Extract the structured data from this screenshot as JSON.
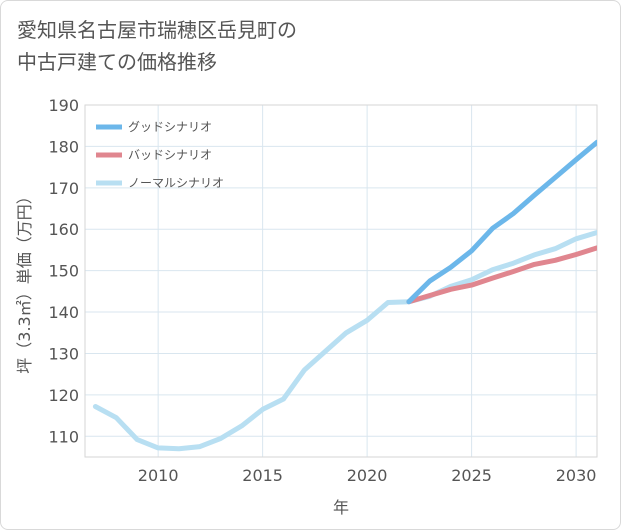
{
  "chart_data": {
    "type": "line",
    "title": "愛知県名古屋市瑞穂区岳見町の\n中古戸建ての価格推移",
    "xlabel": "年",
    "ylabel": "坪（3.3㎡）単価（万円）",
    "xlim": [
      2006.5,
      2031
    ],
    "ylim": [
      105,
      190
    ],
    "xticks": [
      2010,
      2015,
      2020,
      2025,
      2030
    ],
    "yticks": [
      110,
      120,
      130,
      140,
      150,
      160,
      170,
      180,
      190
    ],
    "grid": true,
    "legend_position": "top-left",
    "series": [
      {
        "name": "グッドシナリオ",
        "color": "#6cb7ea",
        "x": [
          2022,
          2023,
          2024,
          2025,
          2026,
          2027,
          2028,
          2029,
          2030,
          2031
        ],
        "y": [
          142.5,
          147.5,
          150.8,
          154.8,
          160.2,
          163.8,
          168.2,
          172.5,
          176.8,
          181.0
        ]
      },
      {
        "name": "バッドシナリオ",
        "color": "#e0868f",
        "x": [
          2022,
          2023,
          2024,
          2025,
          2026,
          2027,
          2028,
          2029,
          2030,
          2031
        ],
        "y": [
          142.5,
          144.0,
          145.5,
          146.5,
          148.2,
          149.8,
          151.5,
          152.5,
          153.9,
          155.5
        ]
      },
      {
        "name": "ノーマルシナリオ",
        "color": "#b8dff2",
        "x": [
          2007,
          2008,
          2009,
          2010,
          2011,
          2012,
          2013,
          2014,
          2015,
          2016,
          2017,
          2018,
          2019,
          2020,
          2021,
          2022,
          2023,
          2024,
          2025,
          2026,
          2027,
          2028,
          2029,
          2030,
          2031
        ],
        "y": [
          117.2,
          114.5,
          109.2,
          107.2,
          107.0,
          107.5,
          109.5,
          112.5,
          116.5,
          119.0,
          126.0,
          130.5,
          135.0,
          138.0,
          142.3,
          142.5,
          143.8,
          146.2,
          147.8,
          150.2,
          151.8,
          153.8,
          155.3,
          157.7,
          159.2
        ]
      }
    ]
  }
}
